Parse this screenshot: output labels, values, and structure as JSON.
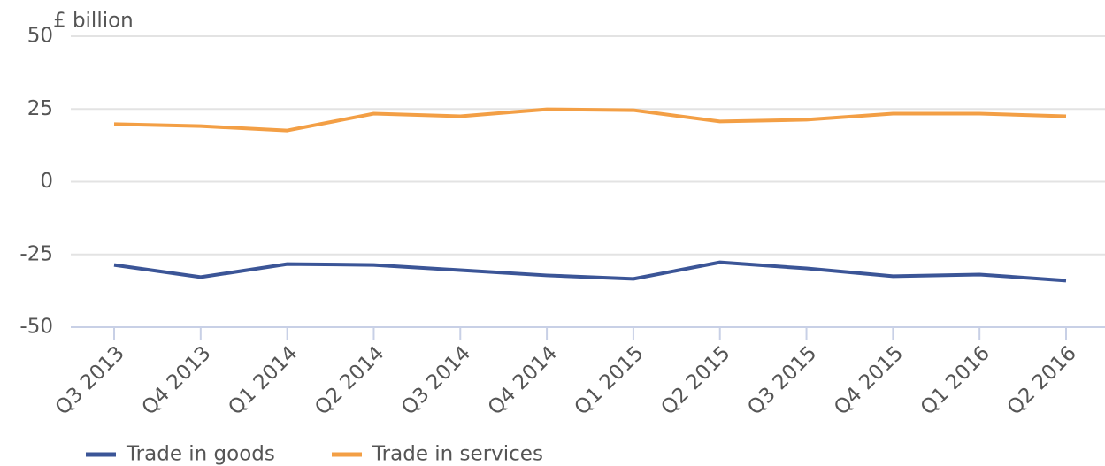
{
  "chart_data": {
    "type": "line",
    "y_label": "£ billion",
    "categories": [
      "Q3 2013",
      "Q4 2013",
      "Q1 2014",
      "Q2 2014",
      "Q3 2014",
      "Q4 2014",
      "Q1 2015",
      "Q2 2015",
      "Q3 2015",
      "Q4 2015",
      "Q1 2016",
      "Q2 2016"
    ],
    "series": [
      {
        "name": "Trade in goods",
        "color": "#3b5597",
        "values": [
          -28.6,
          -32.8,
          -28.3,
          -28.6,
          -30.4,
          -32.2,
          -33.4,
          -27.7,
          -29.8,
          -32.5,
          -31.9,
          -34.0
        ]
      },
      {
        "name": "Trade in services",
        "color": "#f39f45",
        "values": [
          19.8,
          19.1,
          17.6,
          23.4,
          22.5,
          24.9,
          24.6,
          20.7,
          21.3,
          23.4,
          23.4,
          22.5
        ]
      }
    ],
    "ylim": [
      -50,
      50
    ],
    "yticks": [
      -50,
      -25,
      0,
      25,
      50
    ],
    "grid": true
  }
}
